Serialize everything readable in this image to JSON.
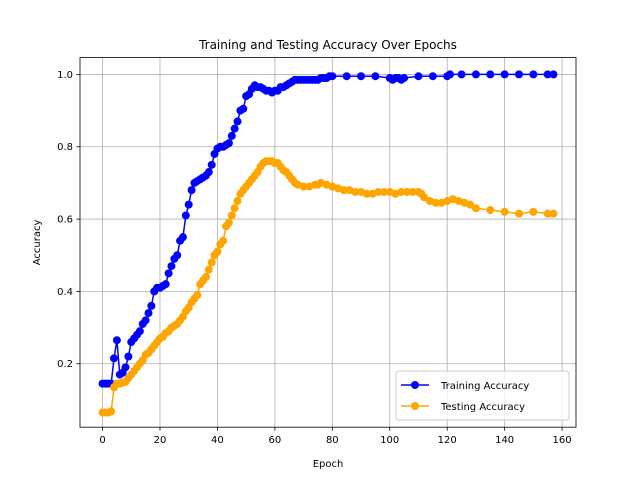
{
  "chart_data": {
    "type": "line",
    "title": "Training and Testing Accuracy Over Epochs",
    "xlabel": "Epoch",
    "ylabel": "Accuracy",
    "xlim": [
      -7.85,
      164.85
    ],
    "ylim": [
      0.0245,
      1.0465
    ],
    "xticks": [
      "0",
      "20",
      "40",
      "60",
      "80",
      "100",
      "120",
      "140",
      "160"
    ],
    "yticks": [
      "0.2",
      "0.4",
      "0.6",
      "0.8",
      "1.0"
    ],
    "grid": true,
    "legend_position": "lower right",
    "series": [
      {
        "name": "Training Accuracy",
        "color": "#0000ff",
        "marker": "circle",
        "x": [
          0,
          1,
          2,
          3,
          4,
          5,
          6,
          7,
          8,
          9,
          10,
          11,
          12,
          13,
          14,
          15,
          16,
          17,
          18,
          19,
          20,
          21,
          22,
          23,
          24,
          25,
          26,
          27,
          28,
          29,
          30,
          31,
          32,
          33,
          34,
          35,
          36,
          37,
          38,
          39,
          40,
          41,
          42,
          43,
          44,
          45,
          46,
          47,
          48,
          49,
          50,
          51,
          52,
          53,
          54,
          55,
          56,
          57,
          58,
          59,
          60,
          61,
          62,
          63,
          64,
          65,
          66,
          67,
          68,
          69,
          70,
          71,
          72,
          73,
          74,
          75,
          76,
          77,
          78,
          79,
          80,
          85,
          90,
          95,
          100,
          101,
          102,
          103,
          104,
          105,
          110,
          115,
          120,
          121,
          125,
          130,
          135,
          140,
          145,
          150,
          155,
          157
        ],
        "y": [
          0.145,
          0.145,
          0.145,
          0.145,
          0.215,
          0.265,
          0.17,
          0.175,
          0.19,
          0.22,
          0.26,
          0.27,
          0.28,
          0.29,
          0.31,
          0.32,
          0.34,
          0.36,
          0.4,
          0.41,
          0.41,
          0.415,
          0.42,
          0.45,
          0.47,
          0.49,
          0.5,
          0.54,
          0.55,
          0.61,
          0.64,
          0.68,
          0.7,
          0.705,
          0.71,
          0.715,
          0.72,
          0.73,
          0.75,
          0.78,
          0.795,
          0.8,
          0.8,
          0.805,
          0.81,
          0.83,
          0.85,
          0.87,
          0.9,
          0.905,
          0.94,
          0.945,
          0.96,
          0.97,
          0.965,
          0.965,
          0.96,
          0.955,
          0.955,
          0.95,
          0.955,
          0.955,
          0.965,
          0.965,
          0.97,
          0.975,
          0.98,
          0.985,
          0.985,
          0.985,
          0.985,
          0.985,
          0.985,
          0.985,
          0.985,
          0.985,
          0.99,
          0.99,
          0.99,
          0.995,
          0.995,
          0.995,
          0.995,
          0.995,
          0.99,
          0.985,
          0.99,
          0.99,
          0.985,
          0.99,
          0.995,
          0.995,
          0.995,
          1.0,
          1.0,
          1.0,
          1.0,
          1.0,
          1.0,
          1.0,
          1.0,
          1.0
        ]
      },
      {
        "name": "Testing Accuracy",
        "color": "#ffa500",
        "marker": "circle",
        "x": [
          0,
          1,
          2,
          3,
          4,
          5,
          6,
          7,
          8,
          9,
          10,
          11,
          12,
          13,
          14,
          15,
          16,
          17,
          18,
          19,
          20,
          21,
          22,
          23,
          24,
          25,
          26,
          27,
          28,
          29,
          30,
          31,
          32,
          33,
          34,
          35,
          36,
          37,
          38,
          39,
          40,
          41,
          42,
          43,
          44,
          45,
          46,
          47,
          48,
          49,
          50,
          51,
          52,
          53,
          54,
          55,
          56,
          57,
          58,
          59,
          60,
          61,
          62,
          63,
          64,
          65,
          66,
          67,
          68,
          70,
          72,
          74,
          75,
          76,
          78,
          80,
          82,
          84,
          86,
          88,
          90,
          92,
          94,
          96,
          98,
          100,
          102,
          104,
          106,
          108,
          110,
          111,
          112,
          114,
          116,
          118,
          120,
          122,
          124,
          126,
          128,
          130,
          135,
          140,
          145,
          150,
          155,
          157
        ],
        "y": [
          0.065,
          0.065,
          0.065,
          0.068,
          0.135,
          0.145,
          0.145,
          0.148,
          0.15,
          0.16,
          0.17,
          0.18,
          0.19,
          0.2,
          0.21,
          0.225,
          0.23,
          0.24,
          0.25,
          0.26,
          0.27,
          0.275,
          0.285,
          0.29,
          0.3,
          0.305,
          0.31,
          0.32,
          0.33,
          0.345,
          0.355,
          0.37,
          0.38,
          0.39,
          0.42,
          0.43,
          0.44,
          0.46,
          0.48,
          0.5,
          0.51,
          0.53,
          0.54,
          0.58,
          0.59,
          0.61,
          0.63,
          0.65,
          0.67,
          0.68,
          0.69,
          0.7,
          0.71,
          0.72,
          0.73,
          0.745,
          0.755,
          0.76,
          0.76,
          0.76,
          0.755,
          0.755,
          0.745,
          0.735,
          0.73,
          0.72,
          0.71,
          0.7,
          0.695,
          0.69,
          0.69,
          0.695,
          0.695,
          0.7,
          0.695,
          0.69,
          0.685,
          0.68,
          0.68,
          0.675,
          0.675,
          0.67,
          0.67,
          0.675,
          0.675,
          0.675,
          0.67,
          0.675,
          0.675,
          0.675,
          0.675,
          0.67,
          0.66,
          0.65,
          0.645,
          0.645,
          0.65,
          0.655,
          0.65,
          0.645,
          0.64,
          0.63,
          0.625,
          0.62,
          0.615,
          0.62,
          0.615,
          0.615
        ]
      }
    ]
  }
}
